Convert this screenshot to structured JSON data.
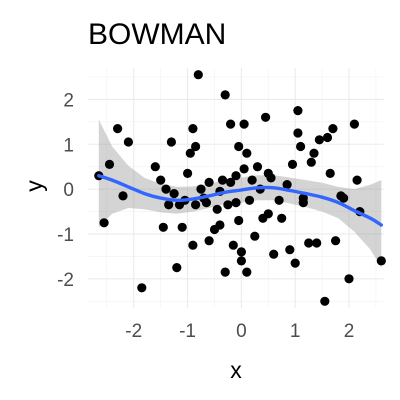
{
  "chart_data": {
    "type": "scatter",
    "title": "BOWMAN",
    "xlabel": "x",
    "ylabel": "y",
    "xlim": [
      -2.85,
      2.65
    ],
    "ylim": [
      -2.65,
      2.7
    ],
    "x_ticks": [
      -2,
      -1,
      0,
      1,
      2
    ],
    "x_tick_labels": [
      "-2",
      "-1",
      "0",
      "1",
      "2"
    ],
    "y_ticks": [
      -2,
      -1,
      0,
      1,
      2
    ],
    "y_tick_labels": [
      "-2",
      "-1",
      "0",
      "1",
      "2"
    ],
    "grid": true,
    "legend": "none",
    "colors": {
      "points": "#000000",
      "smooth_line": "#3366ff",
      "ribbon": "#999999"
    },
    "points": [
      [
        -2.65,
        0.3
      ],
      [
        -2.55,
        -0.75
      ],
      [
        -2.45,
        0.55
      ],
      [
        -2.3,
        1.35
      ],
      [
        -2.2,
        -0.15
      ],
      [
        -2.1,
        1.05
      ],
      [
        -1.85,
        -2.2
      ],
      [
        -1.6,
        0.5
      ],
      [
        -1.5,
        0.2
      ],
      [
        -1.45,
        -0.85
      ],
      [
        -1.4,
        0.0
      ],
      [
        -1.35,
        -0.35
      ],
      [
        -1.3,
        1.05
      ],
      [
        -1.25,
        -0.1
      ],
      [
        -1.2,
        -1.75
      ],
      [
        -1.15,
        -0.35
      ],
      [
        -1.1,
        -0.85
      ],
      [
        -1.05,
        -0.25
      ],
      [
        -1.0,
        0.35
      ],
      [
        -0.95,
        0.8
      ],
      [
        -0.9,
        1.35
      ],
      [
        -0.9,
        -1.25
      ],
      [
        -0.85,
        0.95
      ],
      [
        -0.85,
        -0.35
      ],
      [
        -0.8,
        2.55
      ],
      [
        -0.75,
        0.0
      ],
      [
        -0.7,
        -0.2
      ],
      [
        -0.65,
        -0.3
      ],
      [
        -0.6,
        -1.15
      ],
      [
        -0.6,
        0.15
      ],
      [
        -0.5,
        -0.9
      ],
      [
        -0.45,
        -0.45
      ],
      [
        -0.4,
        -0.05
      ],
      [
        -0.4,
        -0.8
      ],
      [
        -0.35,
        0.2
      ],
      [
        -0.3,
        2.1
      ],
      [
        -0.3,
        -1.85
      ],
      [
        -0.25,
        -0.35
      ],
      [
        -0.2,
        1.45
      ],
      [
        -0.2,
        0.15
      ],
      [
        -0.15,
        -1.25
      ],
      [
        -0.1,
        0.3
      ],
      [
        -0.1,
        -0.3
      ],
      [
        -0.05,
        -0.7
      ],
      [
        -0.05,
        0.95
      ],
      [
        0.0,
        -1.6
      ],
      [
        0.0,
        -1.4
      ],
      [
        0.05,
        0.45
      ],
      [
        0.05,
        1.45
      ],
      [
        0.1,
        0.8
      ],
      [
        0.1,
        -1.85
      ],
      [
        0.15,
        -0.25
      ],
      [
        0.2,
        0.2
      ],
      [
        0.25,
        -1.05
      ],
      [
        0.3,
        0.5
      ],
      [
        0.35,
        0.0
      ],
      [
        0.4,
        -0.65
      ],
      [
        0.45,
        1.6
      ],
      [
        0.5,
        -0.55
      ],
      [
        0.5,
        0.35
      ],
      [
        0.55,
        0.25
      ],
      [
        0.6,
        -1.45
      ],
      [
        0.7,
        -0.25
      ],
      [
        0.75,
        -0.65
      ],
      [
        0.85,
        0.1
      ],
      [
        0.9,
        -1.35
      ],
      [
        0.95,
        0.55
      ],
      [
        1.0,
        -1.65
      ],
      [
        1.05,
        1.75
      ],
      [
        1.05,
        1.25
      ],
      [
        1.1,
        0.95
      ],
      [
        1.15,
        -0.2
      ],
      [
        1.15,
        -0.3
      ],
      [
        1.25,
        -1.2
      ],
      [
        1.3,
        0.6
      ],
      [
        1.35,
        0.8
      ],
      [
        1.4,
        -1.2
      ],
      [
        1.45,
        1.1
      ],
      [
        1.55,
        -2.5
      ],
      [
        1.6,
        1.15
      ],
      [
        1.65,
        0.35
      ],
      [
        1.7,
        1.35
      ],
      [
        1.75,
        -1.15
      ],
      [
        1.85,
        -0.15
      ],
      [
        1.9,
        -0.2
      ],
      [
        2.0,
        -2.0
      ],
      [
        2.1,
        1.45
      ],
      [
        2.15,
        0.2
      ],
      [
        2.2,
        -0.5
      ],
      [
        2.6,
        -1.6
      ]
    ],
    "smooth": {
      "x": [
        -2.65,
        -2.4,
        -2.1,
        -1.8,
        -1.5,
        -1.2,
        -0.9,
        -0.6,
        -0.3,
        0.0,
        0.3,
        0.6,
        0.9,
        1.2,
        1.5,
        1.8,
        2.1,
        2.4,
        2.6
      ],
      "y": [
        0.3,
        0.2,
        0.05,
        -0.1,
        -0.2,
        -0.25,
        -0.22,
        -0.15,
        -0.07,
        -0.02,
        0.03,
        0.03,
        -0.03,
        -0.1,
        -0.18,
        -0.3,
        -0.48,
        -0.65,
        -0.8
      ],
      "lower": [
        -0.85,
        -0.55,
        -0.42,
        -0.45,
        -0.52,
        -0.55,
        -0.5,
        -0.42,
        -0.33,
        -0.3,
        -0.25,
        -0.25,
        -0.32,
        -0.4,
        -0.5,
        -0.65,
        -0.95,
        -1.35,
        -1.75
      ],
      "upper": [
        1.55,
        0.95,
        0.52,
        0.25,
        0.12,
        0.05,
        0.06,
        0.12,
        0.2,
        0.26,
        0.31,
        0.31,
        0.26,
        0.2,
        0.14,
        0.05,
        0.0,
        0.1,
        0.2
      ]
    }
  }
}
